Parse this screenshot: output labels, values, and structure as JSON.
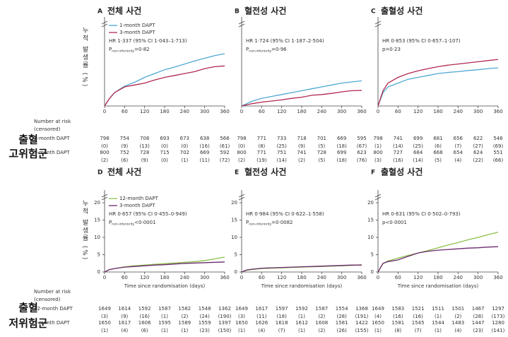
{
  "rows": [
    {
      "label": [
        "출혈",
        "고위험군"
      ],
      "risk_header": [
        "Number at risk",
        "(censored)"
      ],
      "arm_labels": [
        "1-month DAPT",
        "3-month DAPT"
      ]
    },
    {
      "label": [
        "출혈",
        "저위험군"
      ],
      "risk_header": [
        "Number at risk",
        "(censored)"
      ],
      "arm_labels": [
        "12-month DAPT",
        "3-month DAPT"
      ]
    }
  ],
  "chart_data": [
    {
      "type": "line",
      "panel": "A",
      "title": "전체 사건",
      "ylabel": "누적 발생률 (%)",
      "legend": true,
      "legend_position": "top-left",
      "annotation": [
        "HR 1·337 (95% CI 1·043–1·713)",
        [
          "P",
          "non-inferiority",
          "=0·82"
        ]
      ],
      "x": [
        0,
        15,
        30,
        60,
        90,
        120,
        150,
        180,
        210,
        240,
        270,
        300,
        330,
        360
      ],
      "xlim": [
        0,
        360
      ],
      "xticks": [
        0,
        60,
        120,
        180,
        240,
        300,
        360
      ],
      "ylim": [
        0,
        20
      ],
      "series": [
        {
          "name": "1-month DAPT",
          "color": "#4fa8d4",
          "values": [
            0,
            2,
            3.5,
            5.2,
            6.2,
            7.5,
            8.5,
            9.5,
            10.2,
            11,
            11.8,
            12.5,
            13.2,
            13.7
          ]
        },
        {
          "name": "3-month DAPT",
          "color": "#b0294f",
          "values": [
            0,
            2,
            3.5,
            5,
            5.5,
            6,
            6.8,
            7.5,
            8,
            8.5,
            9,
            9.8,
            10.3,
            10.5
          ]
        }
      ],
      "risk_table": {
        "at_risk": [
          [
            798,
            754,
            708,
            693,
            673,
            638,
            566
          ],
          [
            800,
            752,
            728,
            715,
            702,
            669,
            592
          ]
        ],
        "censored": [
          [
            "(0)",
            "(9)",
            "(13)",
            "(0)",
            "(0)",
            "(16)",
            "(61)"
          ],
          [
            "(2)",
            "(6)",
            "(9)",
            "(0)",
            "(1)",
            "(11)",
            "(72)"
          ]
        ]
      }
    },
    {
      "type": "line",
      "panel": "B",
      "title": "혈전성 사건",
      "legend": false,
      "annotation": [
        "HR 1·724 (95% CI 1·187–2·504)",
        [
          "P",
          "non-inferiority",
          "=0·96"
        ]
      ],
      "x": [
        0,
        15,
        30,
        60,
        90,
        120,
        150,
        180,
        210,
        240,
        270,
        300,
        330,
        360
      ],
      "xlim": [
        0,
        360
      ],
      "xticks": [
        0,
        60,
        120,
        180,
        240,
        300,
        360
      ],
      "ylim": [
        0,
        20
      ],
      "series": [
        {
          "name": "1-month DAPT",
          "color": "#4fa8d4",
          "values": [
            0,
            0.6,
            1.2,
            2,
            2.5,
            3,
            3.5,
            4,
            4.5,
            5,
            5.5,
            6,
            6.3,
            6.6
          ]
        },
        {
          "name": "3-month DAPT",
          "color": "#b0294f",
          "values": [
            0,
            0.3,
            0.6,
            1,
            1.3,
            1.6,
            2,
            2.3,
            2.8,
            3,
            3.3,
            3.7,
            4,
            4.1
          ]
        }
      ],
      "risk_table": {
        "at_risk": [
          [
            798,
            771,
            733,
            718,
            701,
            669,
            595
          ],
          [
            800,
            771,
            751,
            741,
            728,
            699,
            623
          ]
        ],
        "censored": [
          [
            "(0)",
            "(8)",
            "(25)",
            "(9)",
            "(5)",
            "(18)",
            "(67)"
          ],
          [
            "(2)",
            "(19)",
            "(14)",
            "(2)",
            "(5)",
            "(18)",
            "(76)"
          ]
        ]
      }
    },
    {
      "type": "line",
      "panel": "C",
      "title": "출혈성 사건",
      "legend": false,
      "annotation": [
        "HR 0·853 (95% CI 0·657–1·107)",
        "p=0·23"
      ],
      "x": [
        0,
        15,
        30,
        60,
        90,
        120,
        150,
        180,
        210,
        240,
        270,
        300,
        330,
        360
      ],
      "xlim": [
        0,
        360
      ],
      "xticks": [
        0,
        60,
        120,
        180,
        240,
        300,
        360
      ],
      "ylim": [
        0,
        20
      ],
      "series": [
        {
          "name": "1-month DAPT",
          "color": "#4fa8d4",
          "values": [
            0,
            3.5,
            5,
            6,
            7,
            7.5,
            8,
            8.5,
            8.8,
            9,
            9.3,
            9.5,
            9.8,
            10
          ]
        },
        {
          "name": "3-month DAPT",
          "color": "#b0294f",
          "values": [
            0,
            4,
            6,
            7.5,
            8.5,
            9.2,
            9.8,
            10.3,
            10.7,
            11,
            11.3,
            11.6,
            11.9,
            12.2
          ]
        }
      ],
      "risk_table": {
        "at_risk": [
          [
            798,
            741,
            699,
            681,
            656,
            622,
            546
          ],
          [
            800,
            727,
            684,
            668,
            654,
            624,
            551
          ]
        ],
        "censored": [
          [
            "(1)",
            "(14)",
            "(25)",
            "(6)",
            "(7)",
            "(27)",
            "(69)"
          ],
          [
            "(3)",
            "(16)",
            "(14)",
            "(5)",
            "(4)",
            "(22)",
            "(66)"
          ]
        ]
      }
    },
    {
      "type": "line",
      "panel": "D",
      "title": "전체 사건",
      "ylabel": "누적 발생률 (%)",
      "xlabel": "Time since randomisation (days)",
      "legend": true,
      "legend_position": "top-left",
      "annotation": [
        "HR 0·657 (95% CI 0·455–0·949)",
        [
          "P",
          "non-inferiority",
          "<0·0001"
        ]
      ],
      "x": [
        0,
        15,
        30,
        60,
        90,
        120,
        150,
        180,
        210,
        240,
        270,
        300,
        330,
        360
      ],
      "xlim": [
        0,
        360
      ],
      "xticks": [
        0,
        60,
        120,
        180,
        240,
        300,
        360
      ],
      "ylim": [
        0,
        20
      ],
      "yticks": [
        0,
        5,
        10,
        15,
        20
      ],
      "series": [
        {
          "name": "12-month DAPT",
          "color": "#8dbf4a",
          "values": [
            0,
            0.7,
            1,
            1.5,
            1.8,
            2,
            2.2,
            2.4,
            2.6,
            2.8,
            3,
            3.3,
            3.8,
            4.3
          ]
        },
        {
          "name": "3-month DAPT",
          "color": "#6b2a6f",
          "values": [
            0,
            0.7,
            1,
            1.4,
            1.6,
            1.8,
            2,
            2.1,
            2.3,
            2.5,
            2.6,
            2.7,
            2.8,
            2.9
          ]
        }
      ],
      "risk_table": {
        "at_risk": [
          [
            1649,
            1614,
            1592,
            1587,
            1582,
            1548,
            1362
          ],
          [
            1650,
            1617,
            1606,
            1595,
            1589,
            1559,
            1397
          ]
        ],
        "censored": [
          [
            "(3)",
            "(9)",
            "(16)",
            "(1)",
            "(2)",
            "(24)",
            "(190)"
          ],
          [
            "(1)",
            "(4)",
            "(6)",
            "(1)",
            "(1)",
            "(23)",
            "(150)"
          ]
        ]
      }
    },
    {
      "type": "line",
      "panel": "E",
      "title": "혈전성 사건",
      "xlabel": "Time since randomisation (days)",
      "legend": false,
      "annotation": [
        "HR 0·984 (95% CI 0·622–1·558)",
        [
          "P",
          "non-inferiority",
          "=0·0082"
        ]
      ],
      "x": [
        0,
        15,
        30,
        60,
        90,
        120,
        150,
        180,
        210,
        240,
        270,
        300,
        330,
        360
      ],
      "xlim": [
        0,
        360
      ],
      "xticks": [
        0,
        60,
        120,
        180,
        240,
        300,
        360
      ],
      "ylim": [
        0,
        20
      ],
      "yticks": [
        0,
        5,
        10,
        15,
        20
      ],
      "series": [
        {
          "name": "12-month DAPT",
          "color": "#8dbf4a",
          "values": [
            0,
            0.5,
            0.7,
            1,
            1.1,
            1.2,
            1.3,
            1.4,
            1.5,
            1.6,
            1.7,
            1.8,
            1.9,
            2.1
          ]
        },
        {
          "name": "3-month DAPT",
          "color": "#6b2a6f",
          "values": [
            0,
            0.6,
            0.8,
            1.1,
            1.2,
            1.3,
            1.4,
            1.5,
            1.6,
            1.7,
            1.8,
            1.9,
            2,
            2
          ]
        }
      ],
      "risk_table": {
        "at_risk": [
          [
            1649,
            1617,
            1597,
            1592,
            1587,
            1554,
            1368
          ],
          [
            1650,
            1626,
            1618,
            1612,
            1608,
            1581,
            1422
          ]
        ],
        "censored": [
          [
            "(3)",
            "(11)",
            "(18)",
            "(1)",
            "(2)",
            "(28)",
            "(191)"
          ],
          [
            "(1)",
            "(4)",
            "(7)",
            "(1)",
            "(2)",
            "(26)",
            "(155)"
          ]
        ]
      }
    },
    {
      "type": "line",
      "panel": "F",
      "title": "출혈성 사건",
      "xlabel": "Time since randomisation (days)",
      "legend": false,
      "annotation": [
        "HR 0·631 (95% CI 0·502–0·793)",
        "p<0·0001"
      ],
      "x": [
        0,
        15,
        30,
        60,
        90,
        120,
        150,
        180,
        210,
        240,
        270,
        300,
        330,
        360
      ],
      "xlim": [
        0,
        360
      ],
      "xticks": [
        0,
        60,
        120,
        180,
        240,
        300,
        360
      ],
      "ylim": [
        0,
        20
      ],
      "yticks": [
        0,
        5,
        10,
        15,
        20
      ],
      "series": [
        {
          "name": "12-month DAPT",
          "color": "#8dbf4a",
          "values": [
            0,
            2.5,
            3.2,
            4,
            4.8,
            5.5,
            6.2,
            7,
            7.8,
            8.5,
            9.3,
            10,
            10.8,
            11.5
          ]
        },
        {
          "name": "3-month DAPT",
          "color": "#6b2a6f",
          "values": [
            0,
            2.5,
            3,
            3.5,
            4.5,
            5.5,
            6,
            6.3,
            6.5,
            6.7,
            6.9,
            7,
            7.2,
            7.3
          ]
        }
      ],
      "risk_table": {
        "at_risk": [
          [
            1649,
            1583,
            1521,
            1511,
            1501,
            1467,
            1297
          ],
          [
            1650,
            1581,
            1545,
            1544,
            1483,
            1447,
            1280
          ]
        ],
        "censored": [
          [
            "(4)",
            "(16)",
            "(16)",
            "(1)",
            "(2)",
            "(28)",
            "(173)"
          ],
          [
            "(1)",
            "(8)",
            "(7)",
            "(1)",
            "(4)",
            "(23)",
            "(141)"
          ]
        ]
      }
    }
  ]
}
